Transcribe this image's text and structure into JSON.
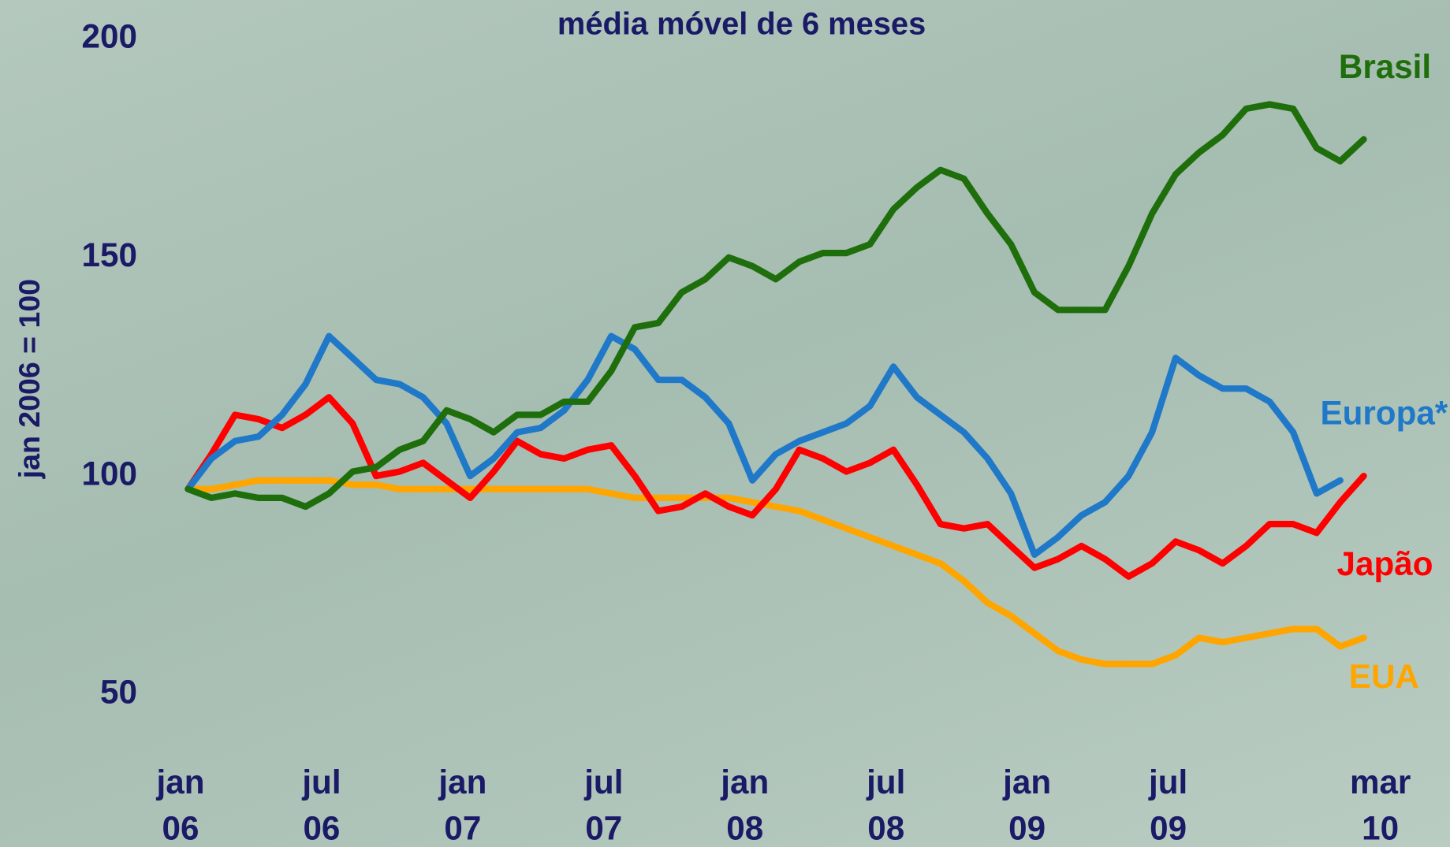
{
  "chart_data": {
    "type": "line",
    "title": "média móvel de 6 meses",
    "y_label": "jan 2006 = 100",
    "categories": [
      "jan 06",
      null,
      null,
      null,
      null,
      null,
      "jul 06",
      null,
      null,
      null,
      null,
      null,
      "jan 07",
      null,
      null,
      null,
      null,
      null,
      "jul 07",
      null,
      null,
      null,
      null,
      null,
      "jan 08",
      null,
      null,
      null,
      null,
      null,
      "jul 08",
      null,
      null,
      null,
      null,
      null,
      "jan 09",
      null,
      null,
      null,
      null,
      null,
      "jul 09",
      null,
      null,
      null,
      null,
      null,
      null,
      null,
      "mar 10"
    ],
    "ylim": [
      50,
      200
    ],
    "yticks": [
      50,
      100,
      150,
      200
    ],
    "grid": false,
    "series": [
      {
        "name": "Brasil",
        "color": "#1f6e0c",
        "values": [
          97,
          95,
          96,
          95,
          95,
          93,
          96,
          101,
          102,
          106,
          108,
          115,
          113,
          110,
          114,
          114,
          117,
          117,
          124,
          134,
          135,
          142,
          145,
          150,
          148,
          145,
          149,
          151,
          151,
          153,
          161,
          166,
          170,
          168,
          160,
          153,
          142,
          138,
          138,
          138,
          148,
          160,
          169,
          174,
          178,
          184,
          185,
          184,
          175,
          172,
          177
        ]
      },
      {
        "name": "Europa*",
        "color": "#1f78c8",
        "values": [
          97,
          104,
          108,
          109,
          114,
          121,
          132,
          127,
          122,
          121,
          118,
          112,
          100,
          104,
          110,
          111,
          115,
          122,
          132,
          129,
          122,
          122,
          118,
          112,
          99,
          105,
          108,
          110,
          112,
          116,
          125,
          118,
          114,
          110,
          104,
          96,
          82,
          86,
          91,
          94,
          100,
          110,
          127,
          123,
          120,
          120,
          117,
          110,
          96,
          99,
          null
        ]
      },
      {
        "name": "Japão",
        "color": "#ff0000",
        "values": [
          97,
          105,
          114,
          113,
          111,
          114,
          118,
          112,
          100,
          101,
          103,
          99,
          95,
          101,
          108,
          105,
          104,
          106,
          107,
          100,
          92,
          93,
          96,
          93,
          91,
          97,
          106,
          104,
          101,
          103,
          106,
          98,
          89,
          88,
          89,
          84,
          79,
          81,
          84,
          81,
          77,
          80,
          85,
          83,
          80,
          84,
          89,
          89,
          87,
          94,
          100
        ]
      },
      {
        "name": "EUA",
        "color": "#ffa500",
        "values": [
          97,
          97,
          98,
          99,
          99,
          99,
          99,
          98,
          98,
          97,
          97,
          97,
          97,
          97,
          97,
          97,
          97,
          97,
          96,
          95,
          95,
          95,
          95,
          95,
          94,
          93,
          92,
          90,
          88,
          86,
          84,
          82,
          80,
          76,
          71,
          68,
          64,
          60,
          58,
          57,
          57,
          57,
          59,
          63,
          62,
          63,
          64,
          65,
          65,
          61,
          63
        ]
      }
    ]
  }
}
